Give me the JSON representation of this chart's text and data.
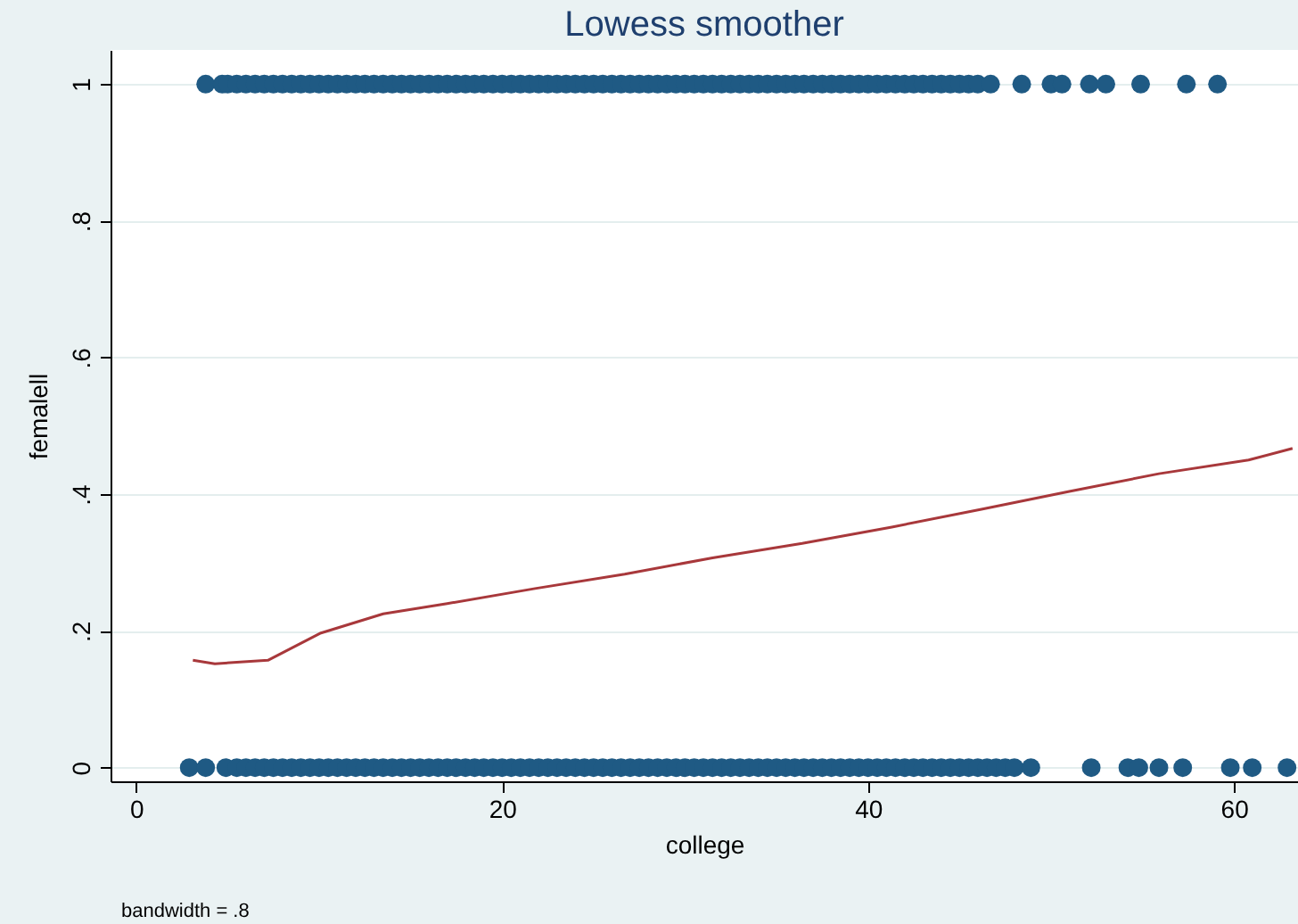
{
  "chart_data": {
    "type": "scatter",
    "title": "Lowess smoother",
    "xlabel": "college",
    "ylabel": "femalell",
    "annotations": [
      "bandwidth = .8"
    ],
    "xlim": [
      -1.4,
      63.5
    ],
    "ylim": [
      -0.02,
      1.05
    ],
    "xticks": [
      0,
      20,
      40,
      60
    ],
    "yticks": [
      0,
      {
        "value": 0.2,
        "label": ".2"
      },
      {
        "value": 0.4,
        "label": ".4"
      },
      {
        "value": 0.6,
        "label": ".6"
      },
      {
        "value": 0.8,
        "label": ".8"
      },
      1
    ],
    "grid": "y",
    "marker": "circle",
    "series": [
      {
        "color": "#1f5a84",
        "x": [
          3.8,
          4.7,
          5,
          5.5,
          6,
          6.5,
          7,
          7.5,
          8,
          8.5,
          9,
          9.5,
          10,
          10.5,
          11,
          11.5,
          12,
          12.5,
          13,
          13.5,
          14,
          14.5,
          15,
          15.5,
          16,
          16.5,
          17,
          17.5,
          18,
          18.5,
          19,
          19.5,
          20,
          20.5,
          21,
          21.5,
          22,
          22.5,
          23,
          23.5,
          24,
          24.5,
          25,
          25.5,
          26,
          26.5,
          27,
          27.5,
          28,
          28.5,
          29,
          29.5,
          30,
          30.5,
          31,
          31.5,
          32,
          32.5,
          33,
          33.5,
          34,
          34.5,
          35,
          35.5,
          36,
          36.5,
          37,
          37.5,
          38,
          38.5,
          39,
          39.5,
          40,
          40.5,
          41,
          41.5,
          42,
          42.5,
          43,
          43.5,
          44,
          44.5,
          45,
          45.5,
          46,
          46.7,
          48.4,
          50,
          50.6,
          52.1,
          53,
          54.9,
          57.4,
          59.1
        ],
        "values": [
          1,
          1,
          1,
          1,
          1,
          1,
          1,
          1,
          1,
          1,
          1,
          1,
          1,
          1,
          1,
          1,
          1,
          1,
          1,
          1,
          1,
          1,
          1,
          1,
          1,
          1,
          1,
          1,
          1,
          1,
          1,
          1,
          1,
          1,
          1,
          1,
          1,
          1,
          1,
          1,
          1,
          1,
          1,
          1,
          1,
          1,
          1,
          1,
          1,
          1,
          1,
          1,
          1,
          1,
          1,
          1,
          1,
          1,
          1,
          1,
          1,
          1,
          1,
          1,
          1,
          1,
          1,
          1,
          1,
          1,
          1,
          1,
          1,
          1,
          1,
          1,
          1,
          1,
          1,
          1,
          1,
          1,
          1,
          1,
          1,
          1,
          1,
          1,
          1,
          1,
          1,
          1,
          1,
          1
        ]
      },
      {
        "color": "#1f5a84",
        "x": [
          2.9,
          3.8,
          4.9,
          5.5,
          6,
          6.5,
          7,
          7.5,
          8,
          8.5,
          9,
          9.5,
          10,
          10.5,
          11,
          11.5,
          12,
          12.5,
          13,
          13.5,
          14,
          14.5,
          15,
          15.5,
          16,
          16.5,
          17,
          17.5,
          18,
          18.5,
          19,
          19.5,
          20,
          20.5,
          21,
          21.5,
          22,
          22.5,
          23,
          23.5,
          24,
          24.5,
          25,
          25.5,
          26,
          26.5,
          27,
          27.5,
          28,
          28.5,
          29,
          29.5,
          30,
          30.5,
          31,
          31.5,
          32,
          32.5,
          33,
          33.5,
          34,
          34.5,
          35,
          35.5,
          36,
          36.5,
          37,
          37.5,
          38,
          38.5,
          39,
          39.5,
          40,
          40.5,
          41,
          41.5,
          42,
          42.5,
          43,
          43.5,
          44,
          44.5,
          45,
          45.5,
          46,
          46.5,
          47,
          47.5,
          48,
          48.9,
          52.2,
          54.2,
          54.8,
          55.9,
          57.2,
          59.8,
          61,
          62.9
        ],
        "values": [
          0,
          0,
          0,
          0,
          0,
          0,
          0,
          0,
          0,
          0,
          0,
          0,
          0,
          0,
          0,
          0,
          0,
          0,
          0,
          0,
          0,
          0,
          0,
          0,
          0,
          0,
          0,
          0,
          0,
          0,
          0,
          0,
          0,
          0,
          0,
          0,
          0,
          0,
          0,
          0,
          0,
          0,
          0,
          0,
          0,
          0,
          0,
          0,
          0,
          0,
          0,
          0,
          0,
          0,
          0,
          0,
          0,
          0,
          0,
          0,
          0,
          0,
          0,
          0,
          0,
          0,
          0,
          0,
          0,
          0,
          0,
          0,
          0,
          0,
          0,
          0,
          0,
          0,
          0,
          0,
          0,
          0,
          0,
          0,
          0,
          0,
          0,
          0,
          0,
          0,
          0,
          0,
          0,
          0,
          0,
          0,
          0,
          0
        ]
      },
      {
        "type": "line",
        "color": "#a8383b",
        "marker": "none",
        "line_style": "solid",
        "x": [
          3.1,
          4.3,
          7.2,
          10.1,
          13.5,
          17,
          21.8,
          26.7,
          31.5,
          36.4,
          41.3,
          46.2,
          51,
          55.9,
          60.8,
          63.2
        ],
        "values": [
          0.157,
          0.152,
          0.157,
          0.197,
          0.225,
          0.24,
          0.262,
          0.283,
          0.307,
          0.328,
          0.352,
          0.378,
          0.404,
          0.43,
          0.45,
          0.467
        ]
      }
    ]
  }
}
